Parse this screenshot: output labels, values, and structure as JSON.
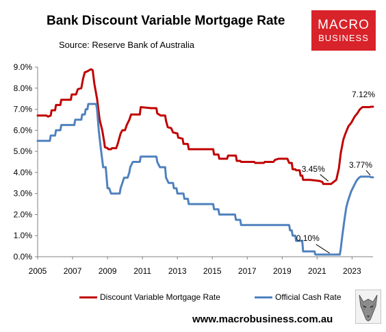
{
  "header": {
    "title": "Bank Discount Variable Mortgage Rate",
    "source": "Source: Reserve Bank of Australia",
    "logo_line1": "MACRO",
    "logo_line2": "BUSINESS"
  },
  "footer": {
    "website": "www.macrobusiness.com.au"
  },
  "colors": {
    "mortgage": "#c00000",
    "cash": "#4f81bd",
    "logo_bg": "#d9232a"
  },
  "chart_data": {
    "type": "line",
    "title": "Bank Discount Variable Mortgage Rate",
    "xlabel": "",
    "ylabel": "",
    "xlim": [
      2005,
      2024.2
    ],
    "ylim": [
      0,
      9
    ],
    "grid": false,
    "legend_position": "bottom",
    "x_ticks": [
      2005,
      2007,
      2009,
      2011,
      2013,
      2015,
      2017,
      2019,
      2021,
      2023
    ],
    "y_ticks": [
      0,
      1,
      2,
      3,
      4,
      5,
      6,
      7,
      8,
      9
    ],
    "y_tick_labels": [
      "0.0%",
      "1.0%",
      "2.0%",
      "3.0%",
      "4.0%",
      "5.0%",
      "6.0%",
      "7.0%",
      "8.0%",
      "9.0%"
    ],
    "series": [
      {
        "name": "Discount Variable Mortgage Rate",
        "color": "#c00000",
        "points": [
          [
            2005.0,
            6.7
          ],
          [
            2005.5,
            6.7
          ],
          [
            2005.6,
            6.65
          ],
          [
            2005.75,
            6.7
          ],
          [
            2005.8,
            6.95
          ],
          [
            2006.0,
            6.95
          ],
          [
            2006.05,
            7.2
          ],
          [
            2006.3,
            7.2
          ],
          [
            2006.35,
            7.45
          ],
          [
            2006.9,
            7.45
          ],
          [
            2006.95,
            7.7
          ],
          [
            2007.2,
            7.7
          ],
          [
            2007.3,
            7.95
          ],
          [
            2007.5,
            8.0
          ],
          [
            2007.6,
            8.45
          ],
          [
            2007.7,
            8.75
          ],
          [
            2007.85,
            8.8
          ],
          [
            2007.95,
            8.85
          ],
          [
            2008.05,
            8.9
          ],
          [
            2008.15,
            8.85
          ],
          [
            2008.25,
            8.2
          ],
          [
            2008.4,
            7.5
          ],
          [
            2008.55,
            6.5
          ],
          [
            2008.7,
            6.0
          ],
          [
            2008.8,
            5.5
          ],
          [
            2008.85,
            5.2
          ],
          [
            2009.0,
            5.15
          ],
          [
            2009.05,
            5.1
          ],
          [
            2009.2,
            5.1
          ],
          [
            2009.25,
            5.15
          ],
          [
            2009.5,
            5.15
          ],
          [
            2009.6,
            5.4
          ],
          [
            2009.75,
            5.85
          ],
          [
            2009.85,
            6.0
          ],
          [
            2010.0,
            6.0
          ],
          [
            2010.1,
            6.25
          ],
          [
            2010.25,
            6.5
          ],
          [
            2010.35,
            6.75
          ],
          [
            2010.85,
            6.75
          ],
          [
            2010.9,
            7.1
          ],
          [
            2011.5,
            7.05
          ],
          [
            2011.8,
            7.05
          ],
          [
            2011.85,
            6.8
          ],
          [
            2012.05,
            6.7
          ],
          [
            2012.3,
            6.7
          ],
          [
            2012.35,
            6.45
          ],
          [
            2012.45,
            6.15
          ],
          [
            2012.65,
            6.1
          ],
          [
            2012.75,
            5.9
          ],
          [
            2013.0,
            5.85
          ],
          [
            2013.05,
            5.65
          ],
          [
            2013.3,
            5.6
          ],
          [
            2013.35,
            5.35
          ],
          [
            2013.6,
            5.35
          ],
          [
            2013.65,
            5.1
          ],
          [
            2014.0,
            5.1
          ],
          [
            2015.05,
            5.1
          ],
          [
            2015.1,
            4.85
          ],
          [
            2015.35,
            4.85
          ],
          [
            2015.4,
            4.65
          ],
          [
            2015.85,
            4.65
          ],
          [
            2015.9,
            4.8
          ],
          [
            2016.35,
            4.8
          ],
          [
            2016.4,
            4.55
          ],
          [
            2016.6,
            4.55
          ],
          [
            2016.65,
            4.5
          ],
          [
            2017.1,
            4.5
          ],
          [
            2017.4,
            4.5
          ],
          [
            2017.45,
            4.45
          ],
          [
            2017.95,
            4.45
          ],
          [
            2018.0,
            4.5
          ],
          [
            2018.5,
            4.5
          ],
          [
            2018.6,
            4.6
          ],
          [
            2018.8,
            4.65
          ],
          [
            2019.3,
            4.65
          ],
          [
            2019.4,
            4.45
          ],
          [
            2019.55,
            4.45
          ],
          [
            2019.6,
            4.15
          ],
          [
            2019.75,
            4.15
          ],
          [
            2019.8,
            4.1
          ],
          [
            2020.0,
            4.1
          ],
          [
            2020.05,
            3.85
          ],
          [
            2020.15,
            3.85
          ],
          [
            2020.2,
            3.65
          ],
          [
            2020.6,
            3.65
          ],
          [
            2021.1,
            3.6
          ],
          [
            2021.3,
            3.55
          ],
          [
            2021.35,
            3.45
          ],
          [
            2021.8,
            3.45
          ],
          [
            2022.1,
            3.65
          ],
          [
            2022.25,
            4.2
          ],
          [
            2022.35,
            4.9
          ],
          [
            2022.5,
            5.55
          ],
          [
            2022.6,
            5.8
          ],
          [
            2022.7,
            6.0
          ],
          [
            2022.8,
            6.2
          ],
          [
            2022.95,
            6.35
          ],
          [
            2023.05,
            6.5
          ],
          [
            2023.15,
            6.65
          ],
          [
            2023.3,
            6.8
          ],
          [
            2023.45,
            7.0
          ],
          [
            2023.6,
            7.1
          ],
          [
            2024.0,
            7.1
          ],
          [
            2024.1,
            7.12
          ],
          [
            2024.2,
            7.12
          ]
        ]
      },
      {
        "name": "Official Cash Rate",
        "color": "#4f81bd",
        "points": [
          [
            2005.0,
            5.5
          ],
          [
            2005.7,
            5.5
          ],
          [
            2005.75,
            5.75
          ],
          [
            2006.0,
            5.75
          ],
          [
            2006.05,
            6.0
          ],
          [
            2006.3,
            6.0
          ],
          [
            2006.35,
            6.25
          ],
          [
            2007.1,
            6.25
          ],
          [
            2007.15,
            6.5
          ],
          [
            2007.5,
            6.5
          ],
          [
            2007.55,
            6.75
          ],
          [
            2007.7,
            6.75
          ],
          [
            2007.75,
            7.0
          ],
          [
            2007.85,
            7.0
          ],
          [
            2007.9,
            7.25
          ],
          [
            2008.35,
            7.25
          ],
          [
            2008.4,
            7.0
          ],
          [
            2008.5,
            6.0
          ],
          [
            2008.6,
            5.25
          ],
          [
            2008.75,
            4.25
          ],
          [
            2008.9,
            4.25
          ],
          [
            2009.0,
            3.25
          ],
          [
            2009.1,
            3.25
          ],
          [
            2009.2,
            3.0
          ],
          [
            2009.7,
            3.0
          ],
          [
            2009.75,
            3.25
          ],
          [
            2009.85,
            3.5
          ],
          [
            2009.95,
            3.75
          ],
          [
            2010.15,
            3.75
          ],
          [
            2010.25,
            4.0
          ],
          [
            2010.3,
            4.25
          ],
          [
            2010.45,
            4.5
          ],
          [
            2010.85,
            4.5
          ],
          [
            2010.9,
            4.75
          ],
          [
            2011.8,
            4.75
          ],
          [
            2011.85,
            4.5
          ],
          [
            2012.0,
            4.25
          ],
          [
            2012.3,
            4.25
          ],
          [
            2012.35,
            3.75
          ],
          [
            2012.5,
            3.5
          ],
          [
            2012.75,
            3.5
          ],
          [
            2012.8,
            3.25
          ],
          [
            2012.95,
            3.25
          ],
          [
            2013.0,
            3.0
          ],
          [
            2013.35,
            3.0
          ],
          [
            2013.4,
            2.75
          ],
          [
            2013.6,
            2.75
          ],
          [
            2013.65,
            2.5
          ],
          [
            2015.05,
            2.5
          ],
          [
            2015.1,
            2.25
          ],
          [
            2015.35,
            2.25
          ],
          [
            2015.4,
            2.0
          ],
          [
            2016.3,
            2.0
          ],
          [
            2016.35,
            1.75
          ],
          [
            2016.6,
            1.75
          ],
          [
            2016.65,
            1.5
          ],
          [
            2019.4,
            1.5
          ],
          [
            2019.45,
            1.25
          ],
          [
            2019.55,
            1.25
          ],
          [
            2019.6,
            1.0
          ],
          [
            2019.75,
            1.0
          ],
          [
            2019.8,
            0.75
          ],
          [
            2020.15,
            0.75
          ],
          [
            2020.2,
            0.25
          ],
          [
            2020.85,
            0.25
          ],
          [
            2020.9,
            0.1
          ],
          [
            2022.3,
            0.1
          ],
          [
            2022.35,
            0.35
          ],
          [
            2022.42,
            0.85
          ],
          [
            2022.5,
            1.35
          ],
          [
            2022.58,
            1.85
          ],
          [
            2022.67,
            2.35
          ],
          [
            2022.75,
            2.6
          ],
          [
            2022.85,
            2.85
          ],
          [
            2022.95,
            3.1
          ],
          [
            2023.1,
            3.35
          ],
          [
            2023.25,
            3.6
          ],
          [
            2023.4,
            3.75
          ],
          [
            2023.5,
            3.8
          ],
          [
            2024.0,
            3.8
          ],
          [
            2024.1,
            3.77
          ],
          [
            2024.2,
            3.77
          ]
        ]
      }
    ],
    "annotations": [
      {
        "text": "7.12%",
        "x": 2024.2,
        "y": 7.12,
        "series": "Discount Variable Mortgage Rate"
      },
      {
        "text": "3.77%",
        "x": 2024.2,
        "y": 3.77,
        "series": "Official Cash Rate"
      },
      {
        "text": "3.45%",
        "x": 2021.8,
        "y": 3.45,
        "series": "Discount Variable Mortgage Rate"
      },
      {
        "text": "0.10%",
        "x": 2021.8,
        "y": 0.1,
        "series": "Official Cash Rate"
      }
    ]
  }
}
